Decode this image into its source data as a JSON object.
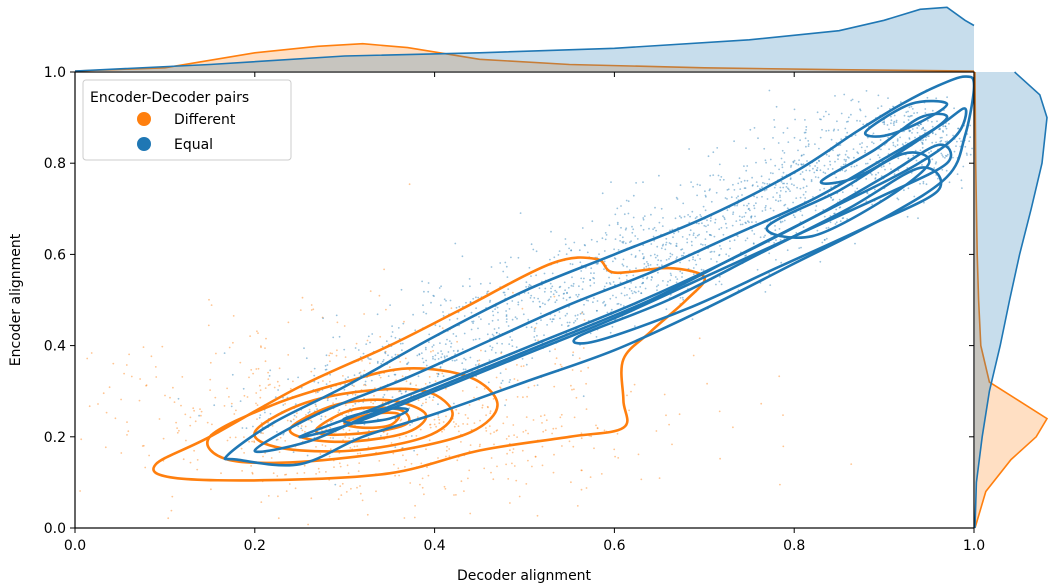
{
  "chart_data": {
    "type": "scatter",
    "xlabel": "Decoder alignment",
    "ylabel": "Encoder alignment",
    "xlim": [
      0.0,
      1.0
    ],
    "ylim": [
      0.0,
      1.0
    ],
    "x_ticks": [
      "0.0",
      "0.2",
      "0.4",
      "0.6",
      "0.8",
      "1.0"
    ],
    "y_ticks": [
      "0.0",
      "0.2",
      "0.4",
      "0.6",
      "0.8",
      "1.0"
    ],
    "grid": false,
    "legend": {
      "title": "Encoder-Decoder pairs",
      "placement": "top-left",
      "entries": [
        {
          "label": "Different",
          "color": "#ff7f0e"
        },
        {
          "label": "Equal",
          "color": "#1f77b4"
        }
      ]
    },
    "series": [
      {
        "name": "Different",
        "color": "#ff7f0e",
        "scatter_cloud": {
          "center": [
            0.33,
            0.24
          ],
          "spread": [
            0.14,
            0.09
          ],
          "count": 700
        },
        "kde_contours": [
          [
            [
              0.09,
              0.14
            ],
            [
              0.15,
              0.2
            ],
            [
              0.25,
              0.31
            ],
            [
              0.35,
              0.4
            ],
            [
              0.43,
              0.48
            ],
            [
              0.53,
              0.58
            ],
            [
              0.58,
              0.59
            ],
            [
              0.6,
              0.56
            ],
            [
              0.66,
              0.57
            ],
            [
              0.7,
              0.55
            ],
            [
              0.68,
              0.5
            ],
            [
              0.64,
              0.43
            ],
            [
              0.61,
              0.37
            ],
            [
              0.61,
              0.28
            ],
            [
              0.61,
              0.22
            ],
            [
              0.55,
              0.2
            ],
            [
              0.45,
              0.17
            ],
            [
              0.35,
              0.12
            ],
            [
              0.22,
              0.105
            ],
            [
              0.11,
              0.11
            ],
            [
              0.09,
              0.14
            ]
          ],
          [
            [
              0.15,
              0.2
            ],
            [
              0.22,
              0.27
            ],
            [
              0.3,
              0.32
            ],
            [
              0.37,
              0.35
            ],
            [
              0.44,
              0.33
            ],
            [
              0.47,
              0.27
            ],
            [
              0.44,
              0.21
            ],
            [
              0.36,
              0.17
            ],
            [
              0.25,
              0.145
            ],
            [
              0.17,
              0.15
            ],
            [
              0.15,
              0.2
            ]
          ],
          [
            [
              0.2,
              0.21
            ],
            [
              0.25,
              0.27
            ],
            [
              0.32,
              0.3
            ],
            [
              0.39,
              0.3
            ],
            [
              0.42,
              0.25
            ],
            [
              0.39,
              0.2
            ],
            [
              0.31,
              0.17
            ],
            [
              0.23,
              0.175
            ],
            [
              0.2,
              0.21
            ]
          ],
          [
            [
              0.24,
              0.22
            ],
            [
              0.29,
              0.27
            ],
            [
              0.35,
              0.28
            ],
            [
              0.39,
              0.25
            ],
            [
              0.37,
              0.21
            ],
            [
              0.31,
              0.19
            ],
            [
              0.26,
              0.195
            ],
            [
              0.24,
              0.22
            ]
          ],
          [
            [
              0.27,
              0.22
            ],
            [
              0.31,
              0.26
            ],
            [
              0.36,
              0.26
            ],
            [
              0.37,
              0.23
            ],
            [
              0.33,
              0.21
            ],
            [
              0.28,
              0.205
            ],
            [
              0.27,
              0.22
            ]
          ],
          [
            [
              0.3,
              0.23
            ],
            [
              0.33,
              0.25
            ],
            [
              0.36,
              0.25
            ],
            [
              0.35,
              0.225
            ],
            [
              0.32,
              0.22
            ],
            [
              0.3,
              0.23
            ]
          ]
        ],
        "marginal_x": [
          [
            0.0,
            0.0
          ],
          [
            0.1,
            0.05
          ],
          [
            0.2,
            0.28
          ],
          [
            0.27,
            0.38
          ],
          [
            0.32,
            0.42
          ],
          [
            0.37,
            0.36
          ],
          [
            0.45,
            0.18
          ],
          [
            0.55,
            0.1
          ],
          [
            0.7,
            0.05
          ],
          [
            0.85,
            0.02
          ],
          [
            1.0,
            0.0
          ]
        ],
        "marginal_y": [
          [
            0.0,
            0.0
          ],
          [
            0.08,
            0.15
          ],
          [
            0.15,
            0.5
          ],
          [
            0.2,
            0.85
          ],
          [
            0.24,
            1.0
          ],
          [
            0.28,
            0.6
          ],
          [
            0.32,
            0.2
          ],
          [
            0.4,
            0.08
          ],
          [
            0.5,
            0.05
          ],
          [
            0.6,
            0.03
          ],
          [
            0.8,
            0.01
          ],
          [
            1.0,
            0.0
          ]
        ]
      },
      {
        "name": "Equal",
        "color": "#1f77b4",
        "scatter_cloud": {
          "band_from": [
            0.2,
            0.2
          ],
          "band_to": [
            0.97,
            0.9
          ],
          "width": 0.06,
          "count": 1800
        },
        "kde_contours": [
          [
            [
              0.17,
              0.16
            ],
            [
              0.22,
              0.23
            ],
            [
              0.3,
              0.31
            ],
            [
              0.4,
              0.42
            ],
            [
              0.5,
              0.52
            ],
            [
              0.6,
              0.6
            ],
            [
              0.7,
              0.68
            ],
            [
              0.8,
              0.78
            ],
            [
              0.87,
              0.87
            ],
            [
              0.92,
              0.93
            ],
            [
              0.96,
              0.97
            ],
            [
              0.99,
              0.99
            ],
            [
              1.0,
              0.97
            ],
            [
              0.99,
              0.86
            ],
            [
              0.97,
              0.77
            ],
            [
              0.9,
              0.68
            ],
            [
              0.8,
              0.58
            ],
            [
              0.7,
              0.48
            ],
            [
              0.6,
              0.39
            ],
            [
              0.5,
              0.32
            ],
            [
              0.4,
              0.25
            ],
            [
              0.32,
              0.2
            ],
            [
              0.25,
              0.14
            ],
            [
              0.18,
              0.15
            ],
            [
              0.17,
              0.16
            ]
          ],
          [
            [
              0.2,
              0.17
            ],
            [
              0.27,
              0.25
            ],
            [
              0.37,
              0.33
            ],
            [
              0.46,
              0.41
            ],
            [
              0.55,
              0.49
            ],
            [
              0.64,
              0.56
            ],
            [
              0.73,
              0.64
            ],
            [
              0.82,
              0.72
            ],
            [
              0.9,
              0.81
            ],
            [
              0.96,
              0.88
            ],
            [
              0.99,
              0.92
            ],
            [
              0.98,
              0.86
            ],
            [
              0.93,
              0.79
            ],
            [
              0.84,
              0.7
            ],
            [
              0.74,
              0.6
            ],
            [
              0.64,
              0.5
            ],
            [
              0.53,
              0.41
            ],
            [
              0.43,
              0.33
            ],
            [
              0.33,
              0.25
            ],
            [
              0.26,
              0.19
            ],
            [
              0.2,
              0.17
            ]
          ],
          [
            [
              0.25,
              0.2
            ],
            [
              0.33,
              0.26
            ],
            [
              0.42,
              0.33
            ],
            [
              0.52,
              0.41
            ],
            [
              0.62,
              0.49
            ],
            [
              0.72,
              0.58
            ],
            [
              0.82,
              0.68
            ],
            [
              0.9,
              0.77
            ],
            [
              0.96,
              0.84
            ],
            [
              0.97,
              0.8
            ],
            [
              0.9,
              0.73
            ],
            [
              0.8,
              0.64
            ],
            [
              0.7,
              0.55
            ],
            [
              0.6,
              0.46
            ],
            [
              0.5,
              0.38
            ],
            [
              0.4,
              0.3
            ],
            [
              0.31,
              0.23
            ],
            [
              0.25,
              0.2
            ]
          ],
          [
            [
              0.56,
              0.42
            ],
            [
              0.66,
              0.5
            ],
            [
              0.76,
              0.6
            ],
            [
              0.86,
              0.7
            ],
            [
              0.94,
              0.79
            ],
            [
              0.96,
              0.74
            ],
            [
              0.88,
              0.66
            ],
            [
              0.78,
              0.57
            ],
            [
              0.68,
              0.48
            ],
            [
              0.58,
              0.41
            ],
            [
              0.56,
              0.42
            ]
          ],
          [
            [
              0.77,
              0.66
            ],
            [
              0.85,
              0.74
            ],
            [
              0.92,
              0.82
            ],
            [
              0.95,
              0.8
            ],
            [
              0.9,
              0.72
            ],
            [
              0.82,
              0.64
            ],
            [
              0.77,
              0.66
            ]
          ],
          [
            [
              0.83,
              0.76
            ],
            [
              0.89,
              0.83
            ],
            [
              0.94,
              0.9
            ],
            [
              0.97,
              0.9
            ],
            [
              0.93,
              0.84
            ],
            [
              0.87,
              0.77
            ],
            [
              0.83,
              0.76
            ]
          ],
          [
            [
              0.88,
              0.87
            ],
            [
              0.93,
              0.93
            ],
            [
              0.97,
              0.93
            ],
            [
              0.94,
              0.89
            ],
            [
              0.9,
              0.86
            ],
            [
              0.88,
              0.87
            ]
          ],
          [
            [
              0.3,
              0.24
            ],
            [
              0.34,
              0.26
            ],
            [
              0.37,
              0.26
            ],
            [
              0.35,
              0.24
            ],
            [
              0.31,
              0.23
            ],
            [
              0.3,
              0.24
            ]
          ]
        ],
        "marginal_x": [
          [
            0.0,
            0.0
          ],
          [
            0.15,
            0.1
          ],
          [
            0.3,
            0.23
          ],
          [
            0.45,
            0.28
          ],
          [
            0.6,
            0.35
          ],
          [
            0.75,
            0.48
          ],
          [
            0.85,
            0.62
          ],
          [
            0.9,
            0.78
          ],
          [
            0.94,
            0.95
          ],
          [
            0.97,
            0.98
          ],
          [
            0.99,
            0.78
          ],
          [
            1.0,
            0.7
          ]
        ],
        "marginal_y": [
          [
            0.0,
            0.0
          ],
          [
            0.1,
            0.02
          ],
          [
            0.2,
            0.1
          ],
          [
            0.3,
            0.2
          ],
          [
            0.4,
            0.35
          ],
          [
            0.5,
            0.48
          ],
          [
            0.6,
            0.62
          ],
          [
            0.7,
            0.78
          ],
          [
            0.8,
            0.93
          ],
          [
            0.9,
            1.0
          ],
          [
            0.95,
            0.9
          ],
          [
            1.0,
            0.55
          ]
        ]
      }
    ]
  }
}
